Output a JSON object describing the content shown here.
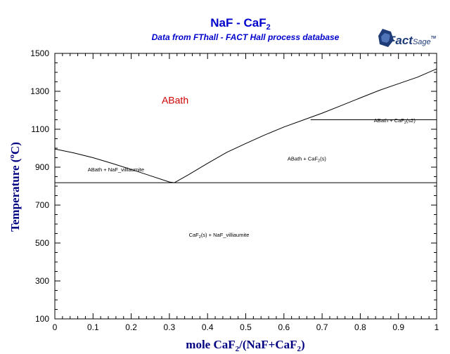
{
  "chart_data": {
    "type": "line",
    "title_main": "NaF - CaF",
    "title_sub": "2",
    "subtitle": "Data from FThall - FACT Hall process database",
    "xlabel_main": "mole CaF",
    "xlabel_sub1": "2",
    "xlabel_mid": "/(NaF+CaF",
    "xlabel_sub2": "2",
    "xlabel_end": ")",
    "ylabel_main": "Temperature (",
    "ylabel_sup": "o",
    "ylabel_end": "C)",
    "xlim": [
      0,
      1
    ],
    "ylim": [
      100,
      1500
    ],
    "x_ticks": [
      0,
      0.1,
      0.2,
      0.3,
      0.4,
      0.5,
      0.6,
      0.7,
      0.8,
      0.9,
      1
    ],
    "x_tick_labels": [
      "0",
      "0.1",
      "0.2",
      "0.3",
      "0.4",
      "0.5",
      "0.6",
      "0.7",
      "0.8",
      "0.9",
      "1"
    ],
    "y_ticks": [
      100,
      300,
      500,
      700,
      900,
      1100,
      1300,
      1500
    ],
    "y_tick_labels": [
      "100",
      "300",
      "500",
      "700",
      "900",
      "1100",
      "1300",
      "1500"
    ],
    "colors": {
      "title": "#0000cc",
      "axis_label": "#000080",
      "liquid_label": "#cc0000",
      "lines": "#000000"
    },
    "series": [
      {
        "points": [
          [
            0,
            996
          ],
          [
            0.05,
            975
          ],
          [
            0.1,
            950
          ],
          [
            0.15,
            920
          ],
          [
            0.2,
            888
          ],
          [
            0.25,
            855
          ],
          [
            0.3,
            822
          ],
          [
            0.313,
            818
          ]
        ]
      },
      {
        "points": [
          [
            0.313,
            818
          ],
          [
            0.35,
            860
          ],
          [
            0.4,
            920
          ],
          [
            0.45,
            978
          ],
          [
            0.5,
            1025
          ],
          [
            0.55,
            1070
          ],
          [
            0.6,
            1112
          ],
          [
            0.65,
            1148
          ],
          [
            0.7,
            1185
          ],
          [
            0.75,
            1225
          ],
          [
            0.8,
            1265
          ],
          [
            0.85,
            1305
          ],
          [
            0.9,
            1340
          ],
          [
            0.95,
            1375
          ],
          [
            1.0,
            1418
          ]
        ]
      },
      {
        "points": [
          [
            0,
            818
          ],
          [
            1,
            818
          ]
        ]
      },
      {
        "points": [
          [
            0.67,
            1150
          ],
          [
            1,
            1150
          ]
        ]
      }
    ],
    "annotations": [
      {
        "x": 0.315,
        "y": 1235,
        "label": "ABath"
      },
      {
        "x": 0.16,
        "y": 877,
        "parts": [
          "ABath + NaF_villiaumite"
        ]
      },
      {
        "x": 0.66,
        "y": 935,
        "parts": [
          "ABath + CaF",
          "2",
          "(s)"
        ]
      },
      {
        "x": 0.89,
        "y": 1137,
        "parts": [
          "ABath + CaF",
          "2",
          "(s2)"
        ]
      },
      {
        "x": 0.43,
        "y": 533,
        "parts": [
          "CaF",
          "2",
          "(s) + NaF_villiaumite"
        ]
      }
    ],
    "grid": false
  },
  "logo": {
    "text_main": "Fact",
    "text_sub": "Sage",
    "mark": "TM"
  }
}
